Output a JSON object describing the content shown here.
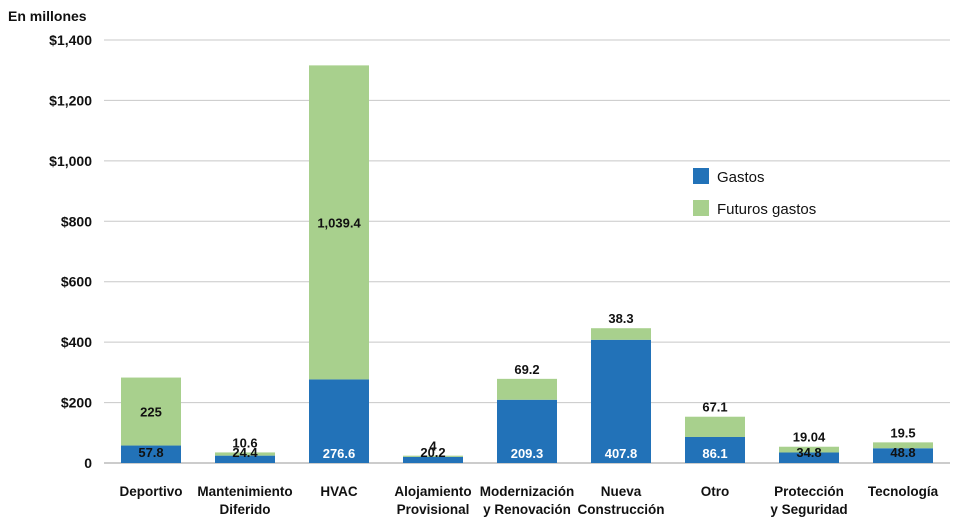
{
  "chart_data": {
    "type": "bar",
    "stacked": true,
    "unit_label": "En millones",
    "categories": [
      [
        "Deportivo"
      ],
      [
        "Mantenimiento",
        "Diferido"
      ],
      [
        "HVAC"
      ],
      [
        "Alojamiento",
        "Provisional"
      ],
      [
        "Modernización",
        "y Renovación"
      ],
      [
        "Nueva",
        "Construcción"
      ],
      [
        "Otro"
      ],
      [
        "Protección",
        "y Seguridad"
      ],
      [
        "Tecnología"
      ]
    ],
    "series": [
      {
        "name": "Gastos",
        "color": "#2272b8",
        "values": [
          57.8,
          24.4,
          276.6,
          20.2,
          209.3,
          407.8,
          86.1,
          34.8,
          48.8
        ],
        "labels": [
          "57.8",
          "24.4",
          "276.6",
          "20.2",
          "209.3",
          "407.8",
          "86.1",
          "34.8",
          "48.8"
        ]
      },
      {
        "name": "Futuros gastos",
        "color": "#a8d08d",
        "values": [
          225,
          10.6,
          1039.4,
          4,
          69.2,
          38.3,
          67.1,
          19.04,
          19.5
        ],
        "labels": [
          "225",
          "10.6",
          "1,039.4",
          "4",
          "69.2",
          "38.3",
          "67.1",
          "19.04",
          "19.5"
        ]
      }
    ],
    "yticks": [
      {
        "value": 0,
        "label": "0"
      },
      {
        "value": 200,
        "label": "$200"
      },
      {
        "value": 400,
        "label": "$400"
      },
      {
        "value": 600,
        "label": "$600"
      },
      {
        "value": 800,
        "label": "$800"
      },
      {
        "value": 1000,
        "label": "$1,000"
      },
      {
        "value": 1200,
        "label": "$1,200"
      },
      {
        "value": 1400,
        "label": "$1,400"
      }
    ],
    "ylim": [
      0,
      1400
    ],
    "grid": true,
    "legend_position": "right"
  }
}
